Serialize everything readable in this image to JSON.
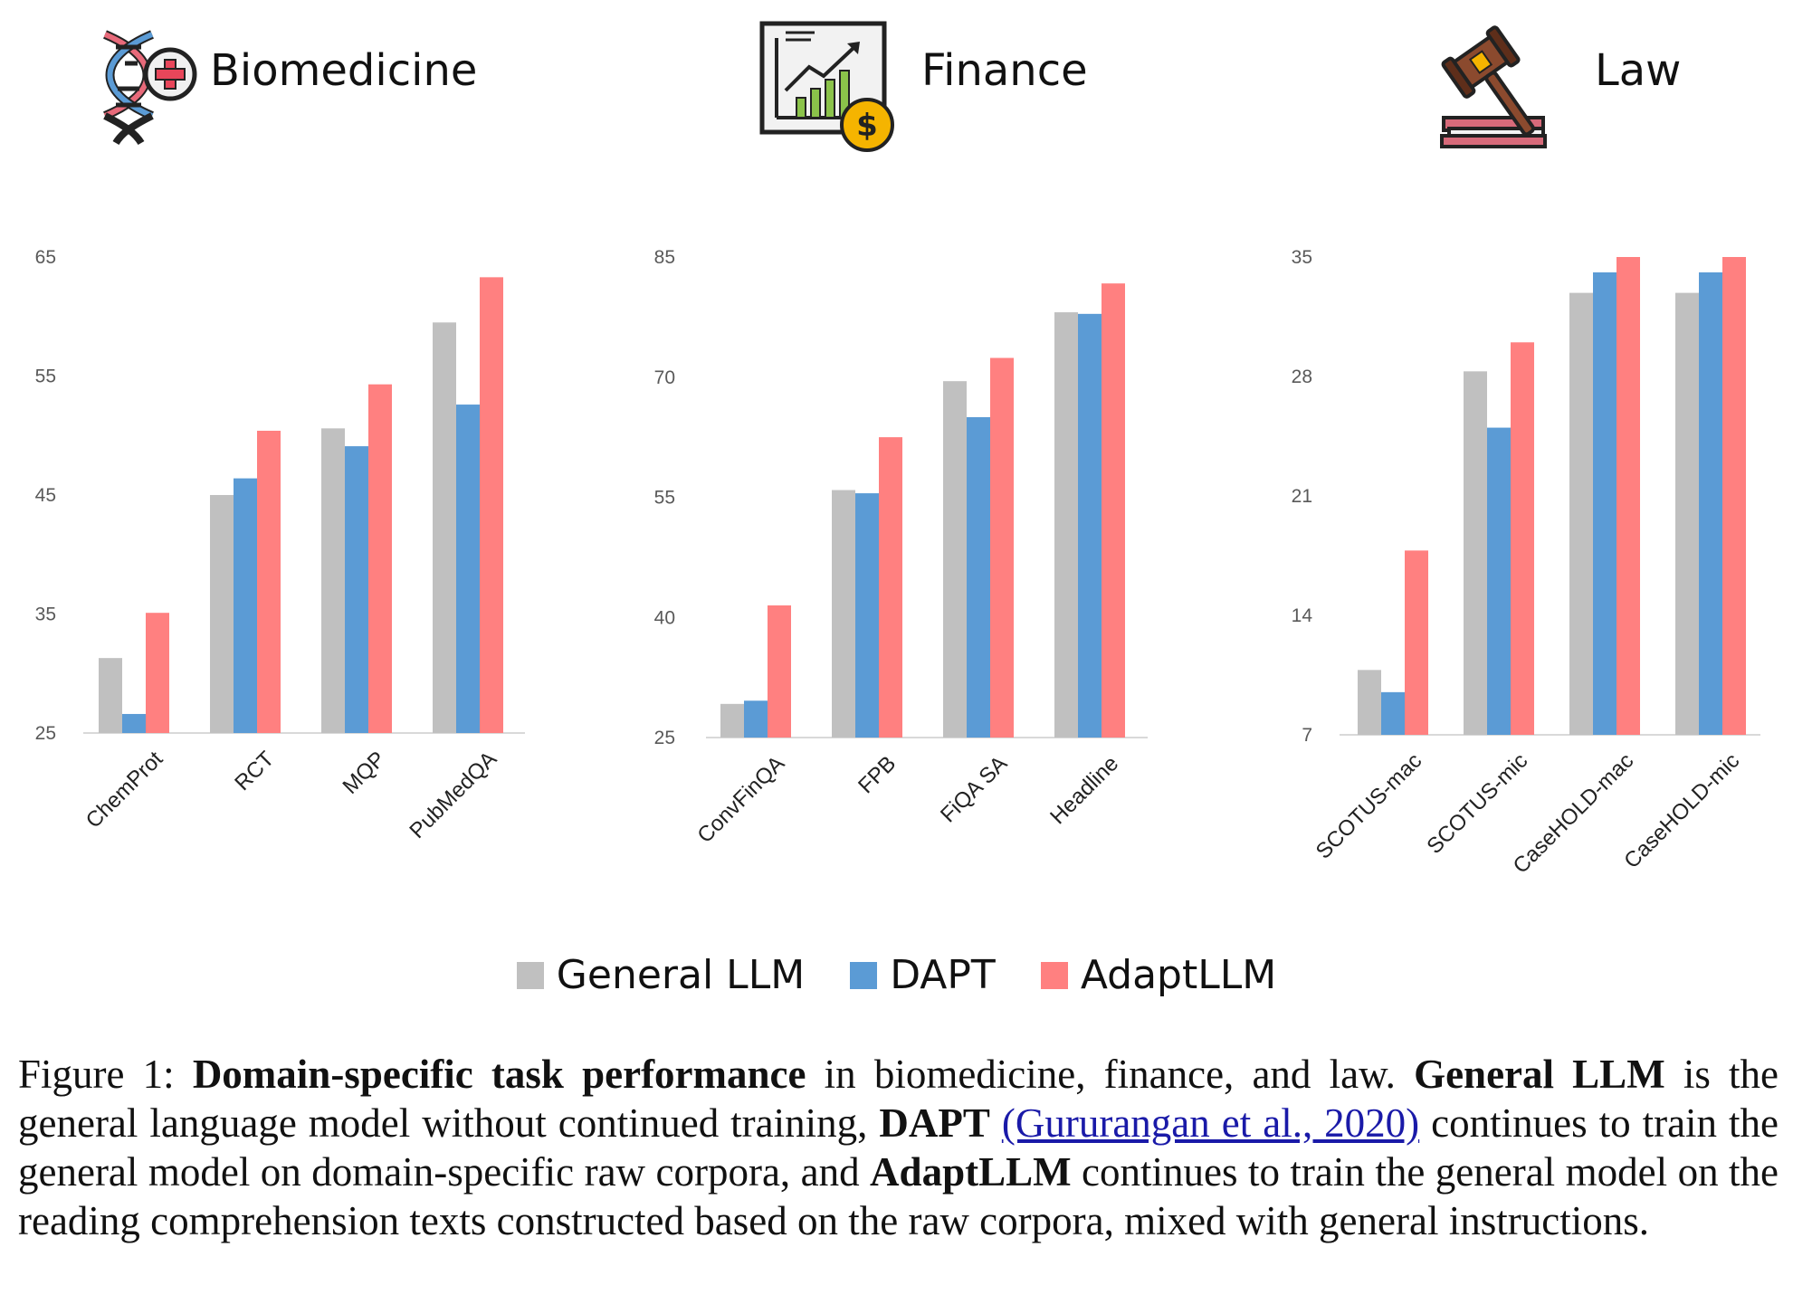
{
  "panels": [
    {
      "title": "Biomedicine",
      "icon": "dna-medical-icon"
    },
    {
      "title": "Finance",
      "icon": "finance-chart-icon"
    },
    {
      "title": "Law",
      "icon": "gavel-book-icon"
    }
  ],
  "legend": [
    {
      "label": "General LLM",
      "color": "#c0c0c0"
    },
    {
      "label": "DAPT",
      "color": "#5b9bd5"
    },
    {
      "label": "AdaptLLM",
      "color": "#ff8080"
    }
  ],
  "caption": {
    "prefix": "Figure 1: ",
    "b1": "Domain-specific task performance",
    "t1": " in biomedicine, finance, and law. ",
    "b2": "General LLM",
    "t2": " is the general language model without continued training, ",
    "b3": "DAPT",
    "t3": " ",
    "link": "(Gururangan et al., 2020)",
    "t4": " continues to train the general model on domain-specific raw corpora, and ",
    "b4": "AdaptLLM",
    "t5": " continues to train the general model on the reading comprehension texts constructed based on the raw corpora, mixed with general instructions."
  },
  "chart_data": [
    {
      "type": "bar",
      "title": "Biomedicine",
      "categories": [
        "ChemProt",
        "RCT",
        "MQP",
        "PubMedQA"
      ],
      "yticks": [
        25,
        35,
        45,
        55,
        65
      ],
      "ylim": [
        25,
        65
      ],
      "grid": false,
      "series": [
        {
          "name": "General LLM",
          "values": [
            31.3,
            45.0,
            50.6,
            59.5
          ]
        },
        {
          "name": "DAPT",
          "values": [
            26.6,
            46.4,
            49.1,
            52.6
          ]
        },
        {
          "name": "AdaptLLM",
          "values": [
            35.1,
            50.4,
            54.3,
            63.3
          ]
        }
      ]
    },
    {
      "type": "bar",
      "title": "Finance",
      "categories": [
        "ConvFinQA",
        "FPB",
        "FiQA SA",
        "Headline"
      ],
      "yticks": [
        25,
        40,
        55,
        70,
        85
      ],
      "ylim": [
        25,
        85
      ],
      "grid": false,
      "series": [
        {
          "name": "General LLM",
          "values": [
            29.2,
            55.9,
            69.5,
            78.1
          ]
        },
        {
          "name": "DAPT",
          "values": [
            29.6,
            55.5,
            65.0,
            77.9
          ]
        },
        {
          "name": "AdaptLLM",
          "values": [
            41.5,
            62.5,
            72.4,
            81.7
          ]
        }
      ]
    },
    {
      "type": "bar",
      "title": "Law",
      "categories": [
        "SCOTUS-mac",
        "SCOTUS-mic",
        "CaseHOLD-mac",
        "CaseHOLD-mic"
      ],
      "yticks": [
        7,
        14,
        21,
        28,
        35
      ],
      "ylim": [
        7,
        35
      ],
      "grid": false,
      "series": [
        {
          "name": "General LLM",
          "values": [
            10.8,
            28.3,
            32.9,
            32.9
          ]
        },
        {
          "name": "DAPT",
          "values": [
            9.5,
            25.0,
            34.1,
            34.1
          ]
        },
        {
          "name": "AdaptLLM",
          "values": [
            17.8,
            30.0,
            35.0,
            35.0
          ]
        }
      ]
    }
  ]
}
